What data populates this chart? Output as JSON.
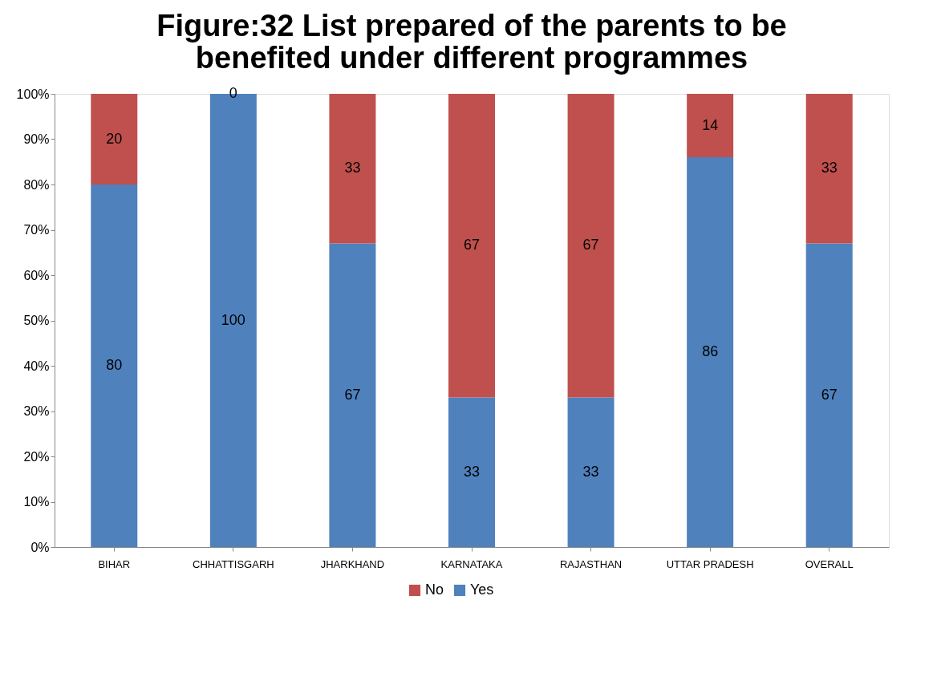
{
  "chart_data": {
    "type": "bar",
    "title": "Figure:32  List prepared of the parents to be benefited under different programmes",
    "categories": [
      "BIHAR",
      "CHHATTISGARH",
      "JHARKHAND",
      "KARNATAKA",
      "RAJASTHAN",
      "UTTAR PRADESH",
      "OVERALL"
    ],
    "series": [
      {
        "name": "Yes",
        "color": "#4f81bd",
        "values": [
          80,
          100,
          67,
          33,
          33,
          86,
          67
        ]
      },
      {
        "name": "No",
        "color": "#c0504d",
        "values": [
          20,
          0,
          33,
          67,
          67,
          14,
          33
        ]
      }
    ],
    "stacked": true,
    "data_labels": true,
    "ylim": [
      0,
      100
    ],
    "yticks": [
      {
        "value": 0,
        "label": "0%"
      },
      {
        "value": 10,
        "label": "10%"
      },
      {
        "value": 20,
        "label": "20%"
      },
      {
        "value": 30,
        "label": "30%"
      },
      {
        "value": 40,
        "label": "40%"
      },
      {
        "value": 50,
        "label": "50%"
      },
      {
        "value": 60,
        "label": "60%"
      },
      {
        "value": 70,
        "label": "70%"
      },
      {
        "value": 80,
        "label": "80%"
      },
      {
        "value": 90,
        "label": "90%"
      },
      {
        "value": 100,
        "label": "100%"
      }
    ],
    "grid": false,
    "legend": "bottom"
  }
}
